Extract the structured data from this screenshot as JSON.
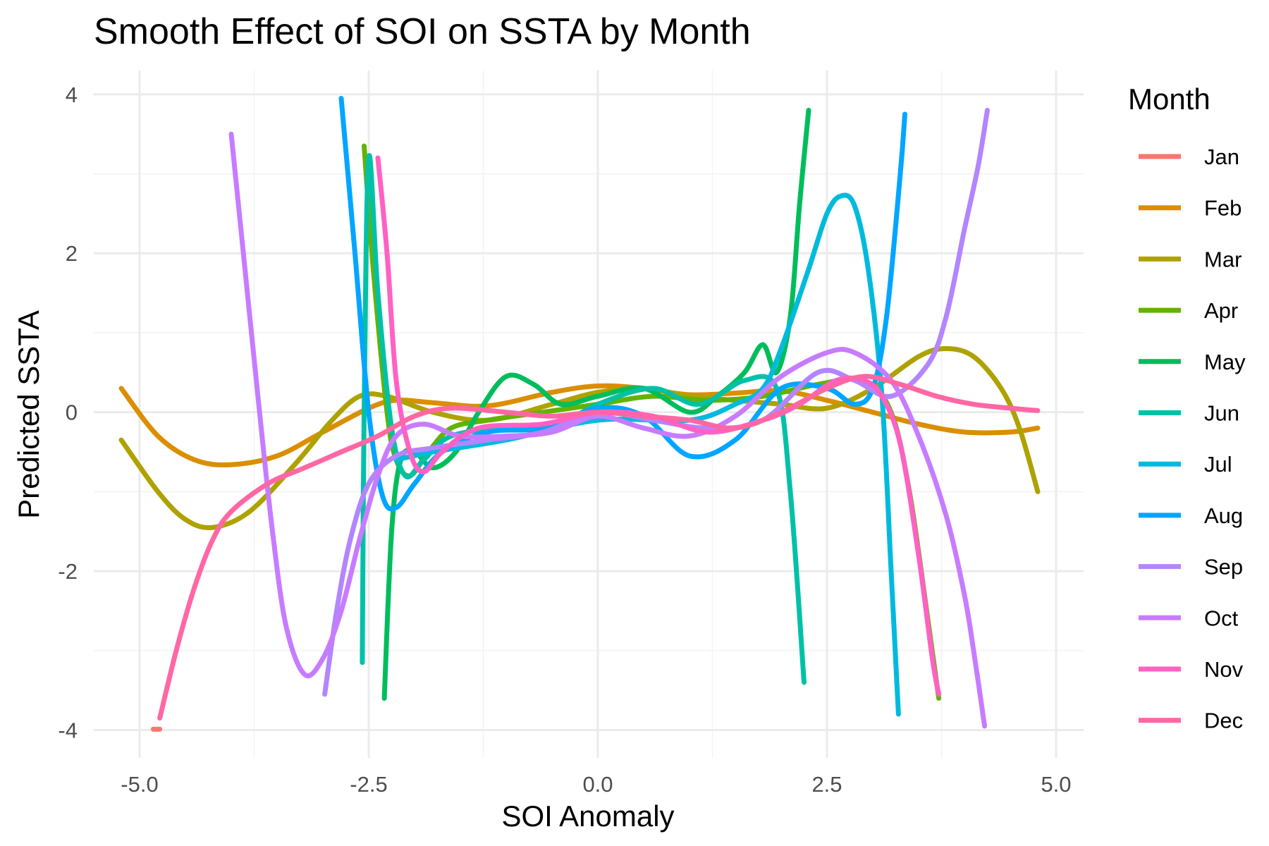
{
  "chart_data": {
    "type": "line",
    "title": "Smooth Effect of SOI on SSTA by Month",
    "xlabel": "SOI Anomaly",
    "ylabel": "Predicted SSTA",
    "xlim": [
      -5.5,
      5.3
    ],
    "ylim": [
      -4.35,
      4.3
    ],
    "x_ticks": [
      -5.0,
      -2.5,
      0.0,
      2.5,
      5.0
    ],
    "x_tick_labels": [
      "-5.0",
      "-2.5",
      "0.0",
      "2.5",
      "5.0"
    ],
    "y_ticks": [
      -4,
      -2,
      0,
      2,
      4
    ],
    "y_tick_labels": [
      "-4",
      "-2",
      "0",
      "2",
      "4"
    ],
    "grid": true,
    "legend": {
      "title": "Month",
      "position": "right"
    },
    "series": [
      {
        "name": "Jan",
        "color": "#F8766D",
        "points": [
          [
            -4.85,
            -3.99
          ],
          [
            -4.78,
            -3.99
          ]
        ]
      },
      {
        "name": "Feb",
        "color": "#DB8E00",
        "points": [
          [
            -5.2,
            0.3
          ],
          [
            -4.8,
            -0.3
          ],
          [
            -4.4,
            -0.6
          ],
          [
            -4.0,
            -0.66
          ],
          [
            -3.5,
            -0.55
          ],
          [
            -3.0,
            -0.25
          ],
          [
            -2.5,
            0.05
          ],
          [
            -2.2,
            0.15
          ],
          [
            -1.8,
            0.12
          ],
          [
            -1.2,
            0.08
          ],
          [
            -0.5,
            0.25
          ],
          [
            0.0,
            0.33
          ],
          [
            0.5,
            0.3
          ],
          [
            1.0,
            0.22
          ],
          [
            1.5,
            0.24
          ],
          [
            2.0,
            0.27
          ],
          [
            2.5,
            0.15
          ],
          [
            3.0,
            0.0
          ],
          [
            3.5,
            -0.15
          ],
          [
            4.0,
            -0.25
          ],
          [
            4.5,
            -0.25
          ],
          [
            4.8,
            -0.2
          ]
        ]
      },
      {
        "name": "Mar",
        "color": "#AEA200",
        "points": [
          [
            -5.2,
            -0.35
          ],
          [
            -4.8,
            -1.0
          ],
          [
            -4.5,
            -1.35
          ],
          [
            -4.2,
            -1.45
          ],
          [
            -3.8,
            -1.25
          ],
          [
            -3.3,
            -0.65
          ],
          [
            -2.9,
            -0.1
          ],
          [
            -2.6,
            0.2
          ],
          [
            -2.3,
            0.2
          ],
          [
            -1.8,
            0.0
          ],
          [
            -1.2,
            -0.1
          ],
          [
            -0.5,
            0.1
          ],
          [
            0.0,
            0.25
          ],
          [
            0.5,
            0.3
          ],
          [
            1.0,
            0.2
          ],
          [
            1.5,
            0.15
          ],
          [
            2.0,
            0.1
          ],
          [
            2.5,
            0.05
          ],
          [
            3.0,
            0.3
          ],
          [
            3.5,
            0.7
          ],
          [
            3.8,
            0.8
          ],
          [
            4.1,
            0.7
          ],
          [
            4.4,
            0.3
          ],
          [
            4.6,
            -0.2
          ],
          [
            4.8,
            -1.0
          ]
        ]
      },
      {
        "name": "Apr",
        "color": "#64B200",
        "points": [
          [
            -2.55,
            3.35
          ],
          [
            -2.45,
            1.8
          ],
          [
            -2.3,
            0.0
          ],
          [
            -2.2,
            -0.6
          ],
          [
            -2.05,
            -0.8
          ],
          [
            -1.85,
            -0.5
          ],
          [
            -1.6,
            -0.2
          ],
          [
            -1.2,
            -0.1
          ],
          [
            -0.6,
            0.0
          ],
          [
            0.0,
            0.1
          ],
          [
            0.6,
            0.2
          ],
          [
            1.2,
            0.15
          ],
          [
            1.8,
            0.2
          ],
          [
            2.4,
            0.35
          ],
          [
            2.9,
            0.4
          ],
          [
            3.2,
            0.0
          ],
          [
            3.4,
            -1.0
          ],
          [
            3.6,
            -2.6
          ],
          [
            3.72,
            -3.6
          ]
        ]
      },
      {
        "name": "May",
        "color": "#00BD5C",
        "points": [
          [
            -2.33,
            -3.6
          ],
          [
            -2.25,
            -1.5
          ],
          [
            -2.15,
            -0.6
          ],
          [
            -2.0,
            -0.5
          ],
          [
            -1.8,
            -0.7
          ],
          [
            -1.55,
            -0.5
          ],
          [
            -1.3,
            0.0
          ],
          [
            -1.0,
            0.45
          ],
          [
            -0.7,
            0.35
          ],
          [
            -0.4,
            0.1
          ],
          [
            0.0,
            0.2
          ],
          [
            0.5,
            0.3
          ],
          [
            1.0,
            0.0
          ],
          [
            1.3,
            0.2
          ],
          [
            1.6,
            0.5
          ],
          [
            1.8,
            0.85
          ],
          [
            1.95,
            0.5
          ],
          [
            2.1,
            1.2
          ],
          [
            2.2,
            2.6
          ],
          [
            2.3,
            3.8
          ]
        ]
      },
      {
        "name": "Jun",
        "color": "#00C1A7",
        "points": [
          [
            -2.57,
            -3.15
          ],
          [
            -2.55,
            0.0
          ],
          [
            -2.5,
            3.2
          ],
          [
            -2.4,
            1.5
          ],
          [
            -2.25,
            -0.2
          ],
          [
            -2.1,
            -0.8
          ],
          [
            -1.9,
            -0.6
          ],
          [
            -1.6,
            -0.3
          ],
          [
            -1.0,
            -0.2
          ],
          [
            -0.5,
            -0.2
          ],
          [
            0.0,
            0.1
          ],
          [
            0.6,
            0.3
          ],
          [
            1.1,
            0.1
          ],
          [
            1.6,
            0.4
          ],
          [
            1.95,
            0.3
          ],
          [
            2.1,
            -1.0
          ],
          [
            2.25,
            -3.4
          ]
        ]
      },
      {
        "name": "Jul",
        "color": "#00BADE",
        "points": [
          [
            -2.2,
            -0.6
          ],
          [
            -1.8,
            -0.5
          ],
          [
            -1.0,
            -0.35
          ],
          [
            0.0,
            -0.1
          ],
          [
            1.0,
            -0.1
          ],
          [
            1.5,
            0.1
          ],
          [
            1.8,
            0.3
          ],
          [
            2.0,
            0.8
          ],
          [
            2.3,
            1.8
          ],
          [
            2.5,
            2.5
          ],
          [
            2.65,
            2.72
          ],
          [
            2.8,
            2.6
          ],
          [
            2.95,
            1.8
          ],
          [
            3.1,
            0.2
          ],
          [
            3.2,
            -2.0
          ],
          [
            3.28,
            -3.8
          ]
        ]
      },
      {
        "name": "Aug",
        "color": "#00A6FF",
        "points": [
          [
            -2.8,
            3.95
          ],
          [
            -2.65,
            2.0
          ],
          [
            -2.5,
            0.0
          ],
          [
            -2.35,
            -1.05
          ],
          [
            -2.2,
            -1.2
          ],
          [
            -2.0,
            -0.9
          ],
          [
            -1.7,
            -0.5
          ],
          [
            -1.2,
            -0.25
          ],
          [
            -0.6,
            -0.2
          ],
          [
            0.0,
            0.05
          ],
          [
            0.5,
            -0.05
          ],
          [
            1.0,
            -0.55
          ],
          [
            1.5,
            -0.35
          ],
          [
            2.0,
            0.3
          ],
          [
            2.5,
            0.3
          ],
          [
            2.8,
            0.1
          ],
          [
            3.0,
            0.3
          ],
          [
            3.15,
            1.2
          ],
          [
            3.3,
            3.0
          ],
          [
            3.35,
            3.75
          ]
        ]
      },
      {
        "name": "Sep",
        "color": "#B385FF",
        "points": [
          [
            -2.98,
            -3.55
          ],
          [
            -2.85,
            -2.5
          ],
          [
            -2.7,
            -1.6
          ],
          [
            -2.5,
            -0.9
          ],
          [
            -2.2,
            -0.55
          ],
          [
            -1.8,
            -0.45
          ],
          [
            -1.2,
            -0.35
          ],
          [
            -0.6,
            -0.25
          ],
          [
            0.0,
            0.0
          ],
          [
            0.6,
            -0.1
          ],
          [
            1.2,
            -0.2
          ],
          [
            1.8,
            -0.1
          ],
          [
            2.4,
            0.5
          ],
          [
            2.8,
            0.4
          ],
          [
            3.2,
            0.2
          ],
          [
            3.6,
            0.6
          ],
          [
            3.8,
            1.2
          ],
          [
            4.0,
            2.3
          ],
          [
            4.15,
            3.1
          ],
          [
            4.25,
            3.8
          ]
        ]
      },
      {
        "name": "Oct",
        "color": "#C77CFF",
        "points": [
          [
            -4.0,
            3.5
          ],
          [
            -3.85,
            1.8
          ],
          [
            -3.7,
            0.1
          ],
          [
            -3.55,
            -1.5
          ],
          [
            -3.4,
            -2.7
          ],
          [
            -3.2,
            -3.3
          ],
          [
            -3.0,
            -3.1
          ],
          [
            -2.8,
            -2.5
          ],
          [
            -2.6,
            -1.6
          ],
          [
            -2.4,
            -0.8
          ],
          [
            -2.2,
            -0.3
          ],
          [
            -1.9,
            -0.15
          ],
          [
            -1.5,
            -0.3
          ],
          [
            -1.0,
            -0.3
          ],
          [
            -0.5,
            -0.25
          ],
          [
            0.0,
            -0.05
          ],
          [
            0.5,
            -0.2
          ],
          [
            1.0,
            -0.3
          ],
          [
            1.5,
            -0.05
          ],
          [
            2.0,
            0.45
          ],
          [
            2.5,
            0.75
          ],
          [
            2.8,
            0.75
          ],
          [
            3.2,
            0.4
          ],
          [
            3.5,
            -0.3
          ],
          [
            3.8,
            -1.3
          ],
          [
            4.0,
            -2.3
          ],
          [
            4.1,
            -3.0
          ],
          [
            4.22,
            -3.95
          ]
        ]
      },
      {
        "name": "Nov",
        "color": "#FF61C3",
        "points": [
          [
            -2.4,
            3.2
          ],
          [
            -2.3,
            2.0
          ],
          [
            -2.2,
            0.4
          ],
          [
            -2.05,
            -0.5
          ],
          [
            -1.9,
            -0.75
          ],
          [
            -1.7,
            -0.5
          ],
          [
            -1.3,
            -0.2
          ],
          [
            -0.6,
            -0.15
          ],
          [
            0.0,
            0.0
          ],
          [
            0.6,
            -0.05
          ],
          [
            1.2,
            -0.25
          ],
          [
            1.8,
            -0.1
          ],
          [
            2.2,
            0.1
          ],
          [
            2.6,
            0.4
          ],
          [
            2.9,
            0.4
          ],
          [
            3.1,
            0.2
          ],
          [
            3.3,
            -0.4
          ],
          [
            3.5,
            -1.8
          ],
          [
            3.65,
            -3.1
          ],
          [
            3.72,
            -3.55
          ]
        ]
      },
      {
        "name": "Dec",
        "color": "#FF67A4",
        "points": [
          [
            -4.78,
            -3.85
          ],
          [
            -4.6,
            -3.0
          ],
          [
            -4.4,
            -2.2
          ],
          [
            -4.2,
            -1.6
          ],
          [
            -4.0,
            -1.25
          ],
          [
            -3.6,
            -0.9
          ],
          [
            -3.2,
            -0.7
          ],
          [
            -2.8,
            -0.5
          ],
          [
            -2.4,
            -0.3
          ],
          [
            -2.0,
            -0.05
          ],
          [
            -1.6,
            0.05
          ],
          [
            -1.0,
            0.0
          ],
          [
            -0.5,
            -0.05
          ],
          [
            0.0,
            0.0
          ],
          [
            0.5,
            -0.05
          ],
          [
            1.0,
            -0.1
          ],
          [
            1.5,
            -0.2
          ],
          [
            2.0,
            0.0
          ],
          [
            2.5,
            0.3
          ],
          [
            2.9,
            0.45
          ],
          [
            3.3,
            0.35
          ],
          [
            3.7,
            0.2
          ],
          [
            4.1,
            0.1
          ],
          [
            4.5,
            0.05
          ],
          [
            4.8,
            0.02
          ]
        ]
      }
    ]
  }
}
